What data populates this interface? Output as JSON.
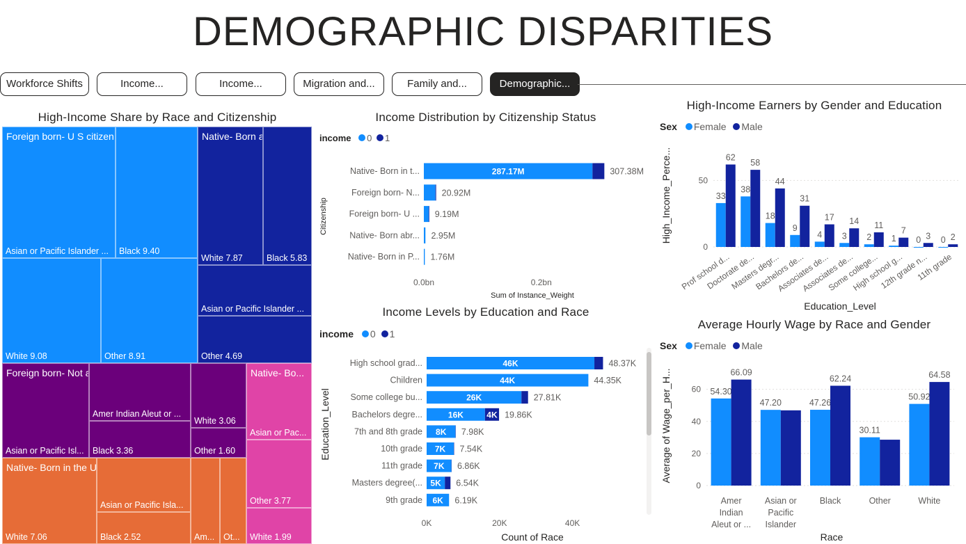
{
  "page": {
    "title": "DEMOGRAPHIC DISPARITIES"
  },
  "tabs": [
    {
      "label": "Workforce Shifts",
      "active": false
    },
    {
      "label": "Income...",
      "active": false
    },
    {
      "label": "Income...",
      "active": false
    },
    {
      "label": "Migration and...",
      "active": false
    },
    {
      "label": "Family and...",
      "active": false
    },
    {
      "label": "Demographic...",
      "active": true
    }
  ],
  "colors": {
    "series0": "#118DFF",
    "series1": "#12239E",
    "dark": "#252423"
  },
  "treemap": {
    "title": "High-Income Share by Race and Citizenship",
    "groups": [
      {
        "name": "Foreign born- U S citizen by naturalization",
        "label": "Foreign born- U S citizen by naturalizati...",
        "color": "#118DFF",
        "items": [
          {
            "label": "Asian or Pacific Islander ...",
            "value": null
          },
          {
            "label": "Black 9.40"
          },
          {
            "label": "White 9.08"
          },
          {
            "label": "Other 8.91"
          }
        ]
      },
      {
        "name": "Native- Born abroad",
        "label": "Native- Born abroad ...",
        "color": "#12239E",
        "items": [
          {
            "label": "White 7.87"
          },
          {
            "label": "Black 5.83"
          },
          {
            "label": "Asian or Pacific Islander ..."
          },
          {
            "label": "Other 4.69"
          }
        ]
      },
      {
        "name": "Foreign born- Not a citizen of U S",
        "label": "Foreign born- Not a citizen of U S",
        "color": "#6B007B",
        "items": [
          {
            "label": "Asian or Pacific Isl..."
          },
          {
            "label": "Amer Indian Aleut or ..."
          },
          {
            "label": "Black 3.36"
          },
          {
            "label": "White 3.06"
          },
          {
            "label": "Other 1.60"
          }
        ]
      },
      {
        "name": "Native- Born in the United States",
        "label": "Native- Born in the United States",
        "color": "#E66C37",
        "items": [
          {
            "label": "White 7.06"
          },
          {
            "label": "Asian or Pacific Isla..."
          },
          {
            "label": "Black 2.52"
          },
          {
            "label": "Am..."
          },
          {
            "label": "Ot..."
          }
        ]
      },
      {
        "name": "Native- Born in Puerto Rico",
        "label": "Native- Bo...",
        "color": "#E044A7",
        "items": [
          {
            "label": "Asian or Pac..."
          },
          {
            "label": "Other 3.77"
          },
          {
            "label": "White 1.99"
          }
        ]
      }
    ]
  },
  "chart_data": [
    {
      "type": "bar",
      "orientation": "horizontal-stacked",
      "title": "Income Distribution by Citizenship Status",
      "xlabel": "Sum of Instance_Weight",
      "ylabel": "Citizenship",
      "legend_title": "income",
      "categories": [
        "Native- Born in t...",
        "Foreign born- N...",
        "Foreign born- U ...",
        "Native- Born abr...",
        "Native- Born in P..."
      ],
      "series": [
        {
          "name": "0",
          "values": [
            287170000,
            19800000,
            8300000,
            2700000,
            1650000
          ]
        },
        {
          "name": "1",
          "values": [
            20210000,
            1120000,
            890000,
            250000,
            110000
          ]
        }
      ],
      "totals_labels": [
        "307.38M",
        "20.92M",
        "9.19M",
        "2.95M",
        "1.76M"
      ],
      "inner_labels": [
        "287.17M",
        "",
        "",
        "",
        ""
      ],
      "xticks": [
        "0.0bn",
        "0.2bn"
      ],
      "xtick_values": [
        0,
        200000000
      ],
      "xlim": [
        0,
        320000000
      ]
    },
    {
      "type": "bar",
      "orientation": "horizontal-stacked",
      "title": "Income Levels by Education and Race",
      "xlabel": "Count of Race",
      "ylabel": "Education_Level",
      "legend_title": "income",
      "categories": [
        "High school grad...",
        "Children",
        "Some college bu...",
        "Bachelors degre...",
        "7th and 8th grade",
        "10th grade",
        "11th grade",
        "Masters degree(...",
        "9th grade"
      ],
      "series": [
        {
          "name": "0",
          "values": [
            46000,
            44350,
            26000,
            16000,
            7900,
            7450,
            6800,
            5000,
            6150
          ]
        },
        {
          "name": "1",
          "values": [
            2370,
            0,
            1810,
            3860,
            80,
            90,
            60,
            1540,
            40
          ]
        }
      ],
      "totals_labels": [
        "48.37K",
        "44.35K",
        "27.81K",
        "19.86K",
        "7.98K",
        "7.54K",
        "6.86K",
        "6.54K",
        "6.19K"
      ],
      "inner0_labels": [
        "46K",
        "44K",
        "26K",
        "16K",
        "8K",
        "7K",
        "7K",
        "5K",
        "6K"
      ],
      "inner1_labels": [
        "",
        "",
        "",
        "4K",
        "",
        "",
        "",
        "",
        ""
      ],
      "xticks": [
        "0K",
        "20K",
        "40K"
      ],
      "xtick_values": [
        0,
        20000,
        40000
      ],
      "xlim": [
        0,
        50000
      ]
    },
    {
      "type": "bar",
      "orientation": "vertical-clustered",
      "title": "High-Income Earners by Gender and Education",
      "xlabel": "Education_Level",
      "ylabel": "High_Income_Perce...",
      "legend_title": "Sex",
      "categories": [
        "Prof school d...",
        "Doctorate de...",
        "Masters degr...",
        "Bachelors de...",
        "Associates de...",
        "Associates de...",
        "Some college...",
        "High school g...",
        "12th grade n...",
        "11th grade"
      ],
      "series": [
        {
          "name": "Female",
          "values": [
            33,
            38,
            18,
            9,
            4,
            3,
            2,
            1,
            0,
            0
          ]
        },
        {
          "name": "Male",
          "values": [
            62,
            58,
            44,
            31,
            17,
            14,
            11,
            7,
            3,
            2
          ]
        }
      ],
      "yticks": [
        0,
        50
      ],
      "ylim": [
        0,
        68
      ]
    },
    {
      "type": "bar",
      "orientation": "vertical-clustered",
      "title": "Average Hourly Wage by Race and Gender",
      "xlabel": "Race",
      "ylabel": "Average of Wage_per_H...",
      "legend_title": "Sex",
      "categories": [
        [
          "Amer",
          "Indian",
          "Aleut or ..."
        ],
        [
          "Asian or",
          "Pacific",
          "Islander"
        ],
        [
          "Black"
        ],
        [
          "Other"
        ],
        [
          "White"
        ]
      ],
      "series": [
        {
          "name": "Female",
          "values": [
            54.3,
            47.2,
            47.26,
            30.11,
            50.92
          ]
        },
        {
          "name": "Male",
          "values": [
            66.09,
            46.9,
            62.24,
            28.6,
            64.58
          ]
        }
      ],
      "data_labels": [
        [
          "54.30",
          "66.09"
        ],
        [
          "47.20",
          ""
        ],
        [
          "47.26",
          "62.24"
        ],
        [
          "30.11",
          ""
        ],
        [
          "50.92",
          "64.58"
        ]
      ],
      "yticks": [
        0,
        20,
        40,
        60
      ],
      "ylim": [
        0,
        72
      ]
    }
  ]
}
